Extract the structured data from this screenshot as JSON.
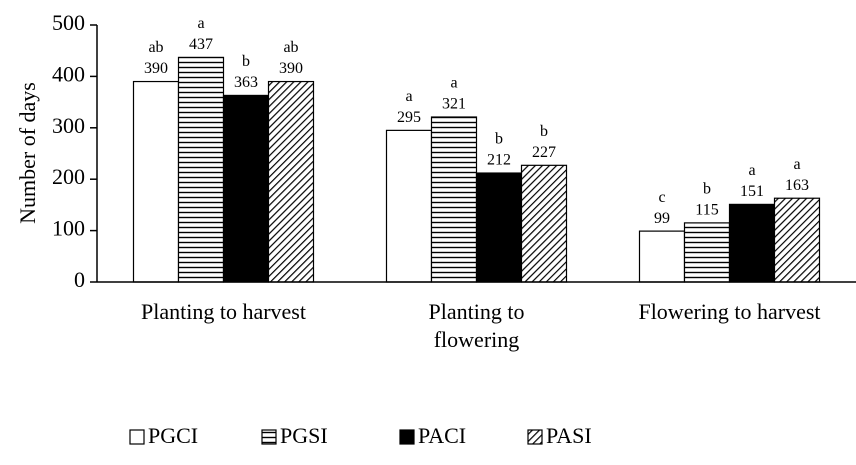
{
  "chart_data": {
    "type": "bar",
    "y_label": "Number of days",
    "categories": [
      "Planting to harvest",
      "Planting to\nflowering",
      "Flowering to harvest"
    ],
    "series": [
      {
        "name": "PGCI",
        "color": "#ffffff",
        "pattern": "none",
        "values": [
          390,
          295,
          99
        ],
        "letters": [
          "ab",
          "a",
          "c"
        ]
      },
      {
        "name": "PGSI",
        "color": "#ffffff",
        "pattern": "horizontal",
        "values": [
          437,
          321,
          115
        ],
        "letters": [
          "a",
          "a",
          "b"
        ]
      },
      {
        "name": "PACI",
        "color": "#000000",
        "pattern": "none",
        "values": [
          363,
          212,
          151
        ],
        "letters": [
          "b",
          "b",
          "a"
        ]
      },
      {
        "name": "PASI",
        "color": "#ffffff",
        "pattern": "diagonal",
        "values": [
          390,
          227,
          163
        ],
        "letters": [
          "ab",
          "b",
          "a"
        ]
      }
    ],
    "ylim": [
      0,
      500
    ],
    "yticks": [
      0,
      100,
      200,
      300,
      400,
      500
    ],
    "grid": false,
    "legend": "bottom"
  }
}
